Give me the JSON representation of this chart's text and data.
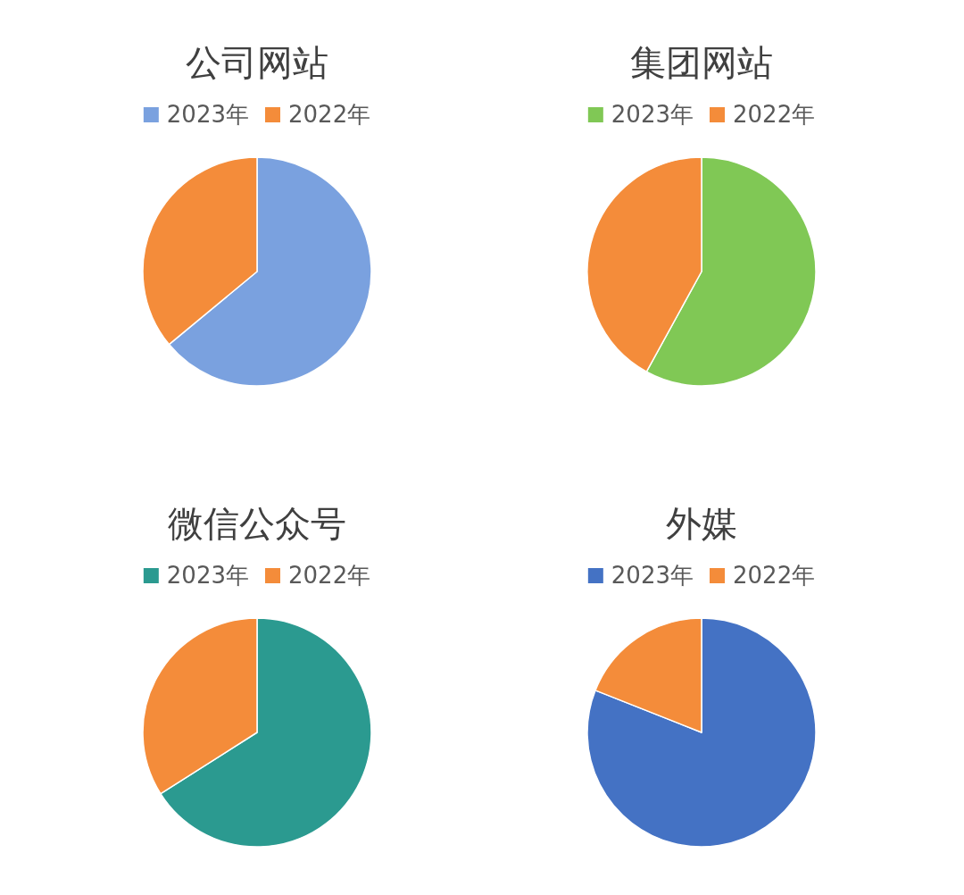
{
  "chart_data": [
    {
      "type": "pie",
      "title": "公司网站",
      "categories": [
        "2023年",
        "2022年"
      ],
      "values": [
        64,
        36
      ],
      "colors": [
        "#7aa1df",
        "#f48c3a"
      ],
      "legend": "top"
    },
    {
      "type": "pie",
      "title": "集团网站",
      "categories": [
        "2023年",
        "2022年"
      ],
      "values": [
        58,
        42
      ],
      "colors": [
        "#80c855",
        "#f48c3a"
      ],
      "legend": "top"
    },
    {
      "type": "pie",
      "title": "微信公众号",
      "categories": [
        "2023年",
        "2022年"
      ],
      "values": [
        66,
        34
      ],
      "colors": [
        "#2b9a90",
        "#f48c3a"
      ],
      "legend": "top"
    },
    {
      "type": "pie",
      "title": "外媒",
      "categories": [
        "2023年",
        "2022年"
      ],
      "values": [
        81,
        19
      ],
      "colors": [
        "#4472c4",
        "#f48c3a"
      ],
      "legend": "top"
    }
  ]
}
